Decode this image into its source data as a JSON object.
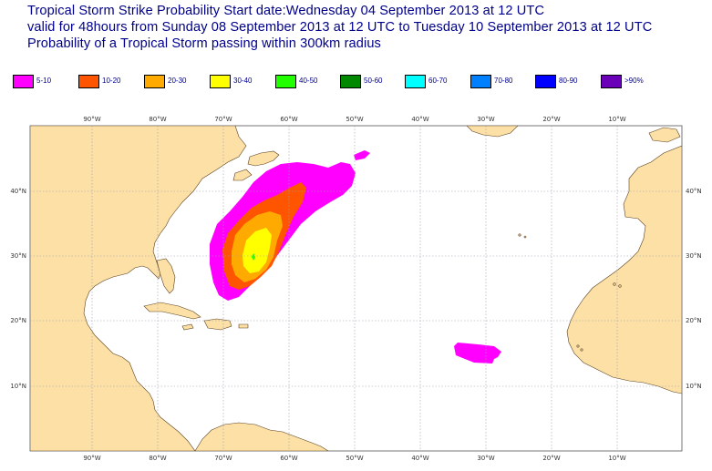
{
  "title": {
    "line1": "Tropical Storm Strike Probability Start date:Wednesday 04 September 2013 at 12 UTC",
    "line2": "valid for 48hours from Sunday 08 September 2013 at 12 UTC to  Tuesday 10 September 2013 at 12 UTC",
    "line3": "Probability of a Tropical Storm passing within 300km radius"
  },
  "legend": [
    {
      "label": "5-10",
      "color": "#ff00ff"
    },
    {
      "label": "10-20",
      "color": "#ff5500"
    },
    {
      "label": "20-30",
      "color": "#ffaa00"
    },
    {
      "label": "30-40",
      "color": "#ffff00"
    },
    {
      "label": "40-50",
      "color": "#22ff00"
    },
    {
      "label": "50-60",
      "color": "#008800"
    },
    {
      "label": "60-70",
      "color": "#00ffff"
    },
    {
      "label": "70-80",
      "color": "#0080ff"
    },
    {
      "label": "80-90",
      "color": "#0000ff"
    },
    {
      "label": ">90%",
      "color": "#6a00b8"
    }
  ],
  "axes": {
    "lon_labels": [
      "90°W",
      "80°W",
      "70°W",
      "60°W",
      "50°W",
      "40°W",
      "30°W",
      "20°W",
      "10°W"
    ],
    "lat_labels": [
      "40°N",
      "30°N",
      "20°N",
      "10°N"
    ]
  },
  "colors": {
    "land": "#fce0a6",
    "ocean": "#ffffff",
    "coast": "#5a4020",
    "grid": "#9aa0b0"
  }
}
